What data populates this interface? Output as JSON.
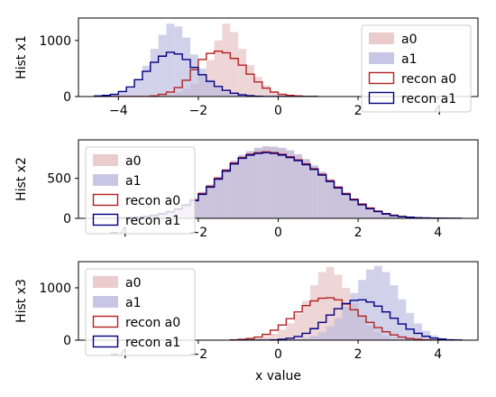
{
  "chart_data": {
    "type": "histogram",
    "xlabel": "x value",
    "xlim": [
      -5,
      5
    ],
    "xticks": [
      -4,
      -2,
      0,
      2,
      4
    ],
    "colors": {
      "a0_fill": "#e5bfc0",
      "a1_fill": "#b9b9de",
      "recon_a0": "#b22222",
      "recon_a1": "#000080"
    },
    "legend_labels": [
      "a0",
      "a1",
      "recon a0",
      "recon a1"
    ],
    "panels": [
      {
        "ylabel": "Hist x1",
        "ylim": [
          0,
          1400
        ],
        "yticks": [
          0,
          1000
        ],
        "legend": "upper right",
        "bin_edges": [
          -4.6,
          -4.4,
          -4.2,
          -4.0,
          -3.8,
          -3.6,
          -3.4,
          -3.2,
          -3.0,
          -2.8,
          -2.6,
          -2.4,
          -2.2,
          -2.0,
          -1.8,
          -1.6,
          -1.4,
          -1.2,
          -1.0,
          -0.8,
          -0.6,
          -0.4,
          -0.2,
          0.0,
          0.2,
          0.4,
          0.6,
          0.8,
          1.0
        ],
        "a0": [
          0,
          0,
          0,
          0,
          0,
          0,
          0,
          10,
          20,
          40,
          80,
          140,
          230,
          400,
          650,
          1000,
          1300,
          1150,
          850,
          560,
          350,
          200,
          100,
          50,
          20,
          10,
          0,
          0
        ],
        "a1": [
          10,
          20,
          40,
          80,
          150,
          300,
          550,
          850,
          1100,
          1300,
          1250,
          1050,
          750,
          500,
          300,
          160,
          80,
          40,
          20,
          10,
          0,
          0,
          0,
          0,
          0,
          0,
          0,
          0
        ],
        "recon_a0": [
          0,
          0,
          0,
          0,
          0,
          0,
          0,
          10,
          40,
          80,
          160,
          290,
          480,
          660,
          770,
          810,
          780,
          680,
          560,
          400,
          260,
          150,
          80,
          40,
          20,
          10,
          0,
          0
        ],
        "recon_a1": [
          10,
          20,
          40,
          90,
          170,
          300,
          450,
          610,
          720,
          790,
          760,
          660,
          520,
          390,
          270,
          180,
          110,
          60,
          30,
          15,
          5,
          0,
          0,
          0,
          0,
          0,
          0,
          0
        ]
      },
      {
        "ylabel": "Hist x2",
        "ylim": [
          0,
          980
        ],
        "yticks": [
          0,
          500
        ],
        "legend": "upper left",
        "bin_edges": [
          -4.0,
          -3.8,
          -3.6,
          -3.4,
          -3.2,
          -3.0,
          -2.8,
          -2.6,
          -2.4,
          -2.2,
          -2.0,
          -1.8,
          -1.6,
          -1.4,
          -1.2,
          -1.0,
          -0.8,
          -0.6,
          -0.4,
          -0.2,
          0.0,
          0.2,
          0.4,
          0.6,
          0.8,
          1.0,
          1.2,
          1.4,
          1.6,
          1.8,
          2.0,
          2.2,
          2.4,
          2.6,
          2.8,
          3.0,
          3.2,
          3.4,
          3.6,
          3.8,
          4.0,
          4.2,
          4.4,
          4.6
        ],
        "a0": [
          8,
          12,
          20,
          30,
          45,
          65,
          90,
          130,
          180,
          250,
          330,
          420,
          520,
          620,
          720,
          790,
          840,
          880,
          900,
          895,
          880,
          850,
          800,
          740,
          660,
          580,
          490,
          400,
          320,
          245,
          180,
          130,
          90,
          60,
          40,
          25,
          15,
          10,
          6,
          4,
          2,
          1,
          0
        ],
        "a1": [
          8,
          12,
          20,
          30,
          45,
          65,
          90,
          130,
          180,
          250,
          330,
          420,
          520,
          620,
          720,
          790,
          840,
          880,
          900,
          895,
          880,
          850,
          800,
          740,
          660,
          580,
          490,
          400,
          320,
          245,
          180,
          130,
          90,
          60,
          40,
          25,
          15,
          10,
          6,
          4,
          2,
          1,
          0
        ],
        "recon_a0": [
          6,
          10,
          16,
          26,
          40,
          60,
          85,
          120,
          170,
          230,
          310,
          400,
          500,
          600,
          690,
          760,
          800,
          820,
          830,
          820,
          800,
          770,
          730,
          680,
          620,
          550,
          470,
          390,
          310,
          240,
          180,
          130,
          90,
          60,
          40,
          25,
          15,
          8,
          5,
          3,
          2,
          1,
          0
        ],
        "recon_a1": [
          5,
          8,
          14,
          22,
          35,
          55,
          80,
          115,
          160,
          220,
          300,
          390,
          490,
          590,
          680,
          750,
          790,
          810,
          820,
          810,
          790,
          760,
          720,
          670,
          610,
          540,
          460,
          380,
          300,
          230,
          170,
          120,
          85,
          55,
          35,
          22,
          14,
          8,
          5,
          3,
          2,
          1,
          0
        ]
      },
      {
        "ylabel": "Hist x3",
        "ylim": [
          0,
          1500
        ],
        "yticks": [
          0,
          1000
        ],
        "legend": "upper left",
        "bin_edges": [
          -1.2,
          -1.0,
          -0.8,
          -0.6,
          -0.4,
          -0.2,
          0.0,
          0.2,
          0.4,
          0.6,
          0.8,
          1.0,
          1.2,
          1.4,
          1.6,
          1.8,
          2.0,
          2.2,
          2.4,
          2.6,
          2.8,
          3.0,
          3.2,
          3.4,
          3.6,
          3.8,
          4.0,
          4.2,
          4.4,
          4.6
        ],
        "a0": [
          5,
          10,
          20,
          40,
          70,
          120,
          200,
          320,
          500,
          750,
          1050,
          1300,
          1400,
          1250,
          1000,
          700,
          450,
          270,
          150,
          80,
          40,
          20,
          10,
          5,
          0,
          0,
          0,
          0,
          0
        ],
        "a1": [
          0,
          0,
          0,
          0,
          0,
          0,
          5,
          10,
          20,
          40,
          80,
          150,
          260,
          420,
          640,
          900,
          1150,
          1350,
          1420,
          1300,
          1050,
          780,
          520,
          320,
          180,
          90,
          40,
          15,
          5
        ],
        "recon_a0": [
          5,
          15,
          30,
          60,
          110,
          190,
          290,
          410,
          540,
          660,
          750,
          800,
          810,
          770,
          690,
          580,
          460,
          340,
          240,
          160,
          100,
          60,
          30,
          15,
          5,
          0,
          0,
          0,
          0
        ],
        "recon_a1": [
          0,
          0,
          0,
          0,
          0,
          5,
          15,
          35,
          70,
          130,
          220,
          340,
          480,
          600,
          700,
          760,
          770,
          730,
          650,
          540,
          420,
          310,
          210,
          130,
          75,
          40,
          20,
          8,
          3
        ]
      }
    ]
  }
}
